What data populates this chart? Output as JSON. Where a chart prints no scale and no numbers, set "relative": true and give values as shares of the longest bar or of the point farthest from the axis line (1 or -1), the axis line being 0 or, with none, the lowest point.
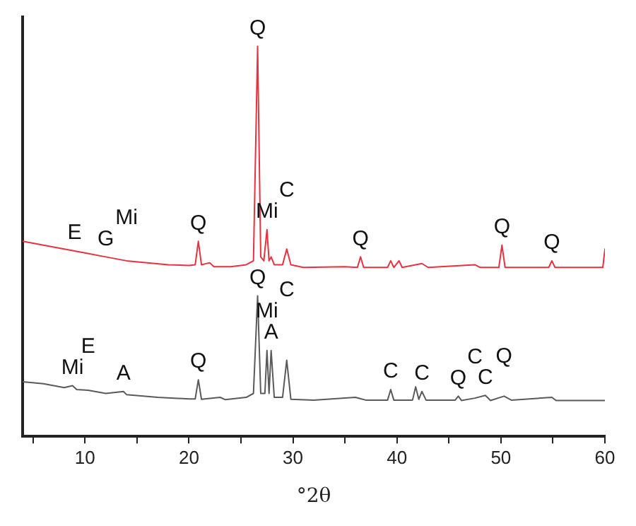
{
  "chart_data": {
    "type": "line",
    "xlabel": "°2θ",
    "relative": true,
    "xlim": [
      4,
      60
    ],
    "xticks": [
      {
        "value": 5,
        "label": null
      },
      10,
      {
        "value": 15,
        "label": null
      },
      20,
      {
        "value": 25,
        "label": null
      },
      30,
      {
        "value": 35,
        "label": null
      },
      40,
      {
        "value": 45,
        "label": null
      },
      50,
      {
        "value": 55,
        "label": null
      },
      60
    ],
    "series": [
      {
        "color": "#e8323f",
        "x": [
          4,
          6,
          8,
          9,
          10,
          12,
          14,
          16,
          18,
          20,
          20.6,
          20.9,
          21.2,
          22,
          22.4,
          24,
          25.5,
          26.2,
          26.6,
          26.9,
          27.2,
          27.5,
          27.7,
          27.9,
          28.2,
          29,
          29.4,
          29.8,
          31,
          35,
          36.2,
          36.5,
          36.8,
          39.1,
          39.4,
          39.7,
          40.2,
          40.5,
          42.4,
          43,
          47.5,
          48,
          49.8,
          50.1,
          50.4,
          54.6,
          54.9,
          55.2,
          59.8,
          60
        ],
        "values": [
          0.5,
          0.49,
          0.48,
          0.475,
          0.47,
          0.46,
          0.45,
          0.445,
          0.44,
          0.438,
          0.44,
          0.5,
          0.44,
          0.445,
          0.435,
          0.435,
          0.44,
          0.45,
          1,
          0.46,
          0.45,
          0.53,
          0.45,
          0.46,
          0.44,
          0.44,
          0.48,
          0.44,
          0.433,
          0.435,
          0.433,
          0.46,
          0.433,
          0.433,
          0.45,
          0.433,
          0.45,
          0.433,
          0.443,
          0.433,
          0.44,
          0.433,
          0.433,
          0.49,
          0.433,
          0.433,
          0.45,
          0.433,
          0.433,
          0.48
        ]
      },
      {
        "color": "#5a5a5a",
        "x": [
          4,
          6,
          8,
          8.8,
          9.2,
          10.3,
          12,
          13.7,
          14,
          17,
          20,
          20.6,
          20.9,
          21.2,
          23,
          23.5,
          25.5,
          26.2,
          26.6,
          26.9,
          27.3,
          27.5,
          27.7,
          27.9,
          28.2,
          29,
          29.4,
          29.8,
          32,
          36,
          37,
          39.1,
          39.4,
          39.7,
          41.5,
          41.8,
          42.1,
          42.4,
          42.8,
          45.6,
          45.9,
          46.2,
          47.5,
          48.5,
          49,
          50.3,
          51,
          54.9,
          55.3,
          60
        ],
        "values": [
          0.14,
          0.135,
          0.125,
          0.13,
          0.12,
          0.118,
          0.11,
          0.115,
          0.107,
          0.1,
          0.096,
          0.096,
          0.145,
          0.095,
          0.1,
          0.094,
          0.1,
          0.11,
          0.36,
          0.11,
          0.11,
          0.22,
          0.11,
          0.22,
          0.1,
          0.1,
          0.195,
          0.095,
          0.093,
          0.1,
          0.093,
          0.093,
          0.12,
          0.093,
          0.093,
          0.127,
          0.095,
          0.115,
          0.093,
          0.093,
          0.103,
          0.092,
          0.098,
          0.105,
          0.092,
          0.103,
          0.093,
          0.1,
          0.092,
          0.092
        ]
      }
    ],
    "annotations": [
      {
        "text": "E",
        "x": 9,
        "y": 0.475
      },
      {
        "text": "G",
        "x": 12,
        "y": 0.46
      },
      {
        "text": "Mi",
        "x": 14,
        "y": 0.45
      },
      {
        "text": "Q",
        "x": 20.9,
        "y": 0.5
      },
      {
        "text": "Q",
        "x": 26.6,
        "y": 1
      },
      {
        "text": "Mi",
        "x": 27.5,
        "y": 0.53
      },
      {
        "text": "C",
        "x": 29.4,
        "y": 0.48
      },
      {
        "text": "Q",
        "x": 36.5,
        "y": 0.46
      },
      {
        "text": "Q",
        "x": 50.1,
        "y": 0.49
      },
      {
        "text": "Q",
        "x": 54.9,
        "y": 0.45
      },
      {
        "text": "Mi",
        "x": 8.8,
        "y": 0.13
      },
      {
        "text": "E",
        "x": 10.3,
        "y": 0.118
      },
      {
        "text": "A",
        "x": 13.7,
        "y": 0.115
      },
      {
        "text": "Q",
        "x": 20.9,
        "y": 0.145
      },
      {
        "text": "Q",
        "x": 26.6,
        "y": 0.36
      },
      {
        "text": "A",
        "x": 27.9,
        "y": 0.22
      },
      {
        "text": "Mi",
        "x": 27.5,
        "y": 0.22
      },
      {
        "text": "C",
        "x": 29.4,
        "y": 0.195
      },
      {
        "text": "C",
        "x": 39.4,
        "y": 0.12
      },
      {
        "text": "C",
        "x": 42.4,
        "y": 0.115
      },
      {
        "text": "Q",
        "x": 45.9,
        "y": 0.103
      },
      {
        "text": "C",
        "x": 47.5,
        "y": 0.098
      },
      {
        "text": "C",
        "x": 48.5,
        "y": 0.105
      },
      {
        "text": "Q",
        "x": 50.3,
        "y": 0.103
      }
    ]
  }
}
